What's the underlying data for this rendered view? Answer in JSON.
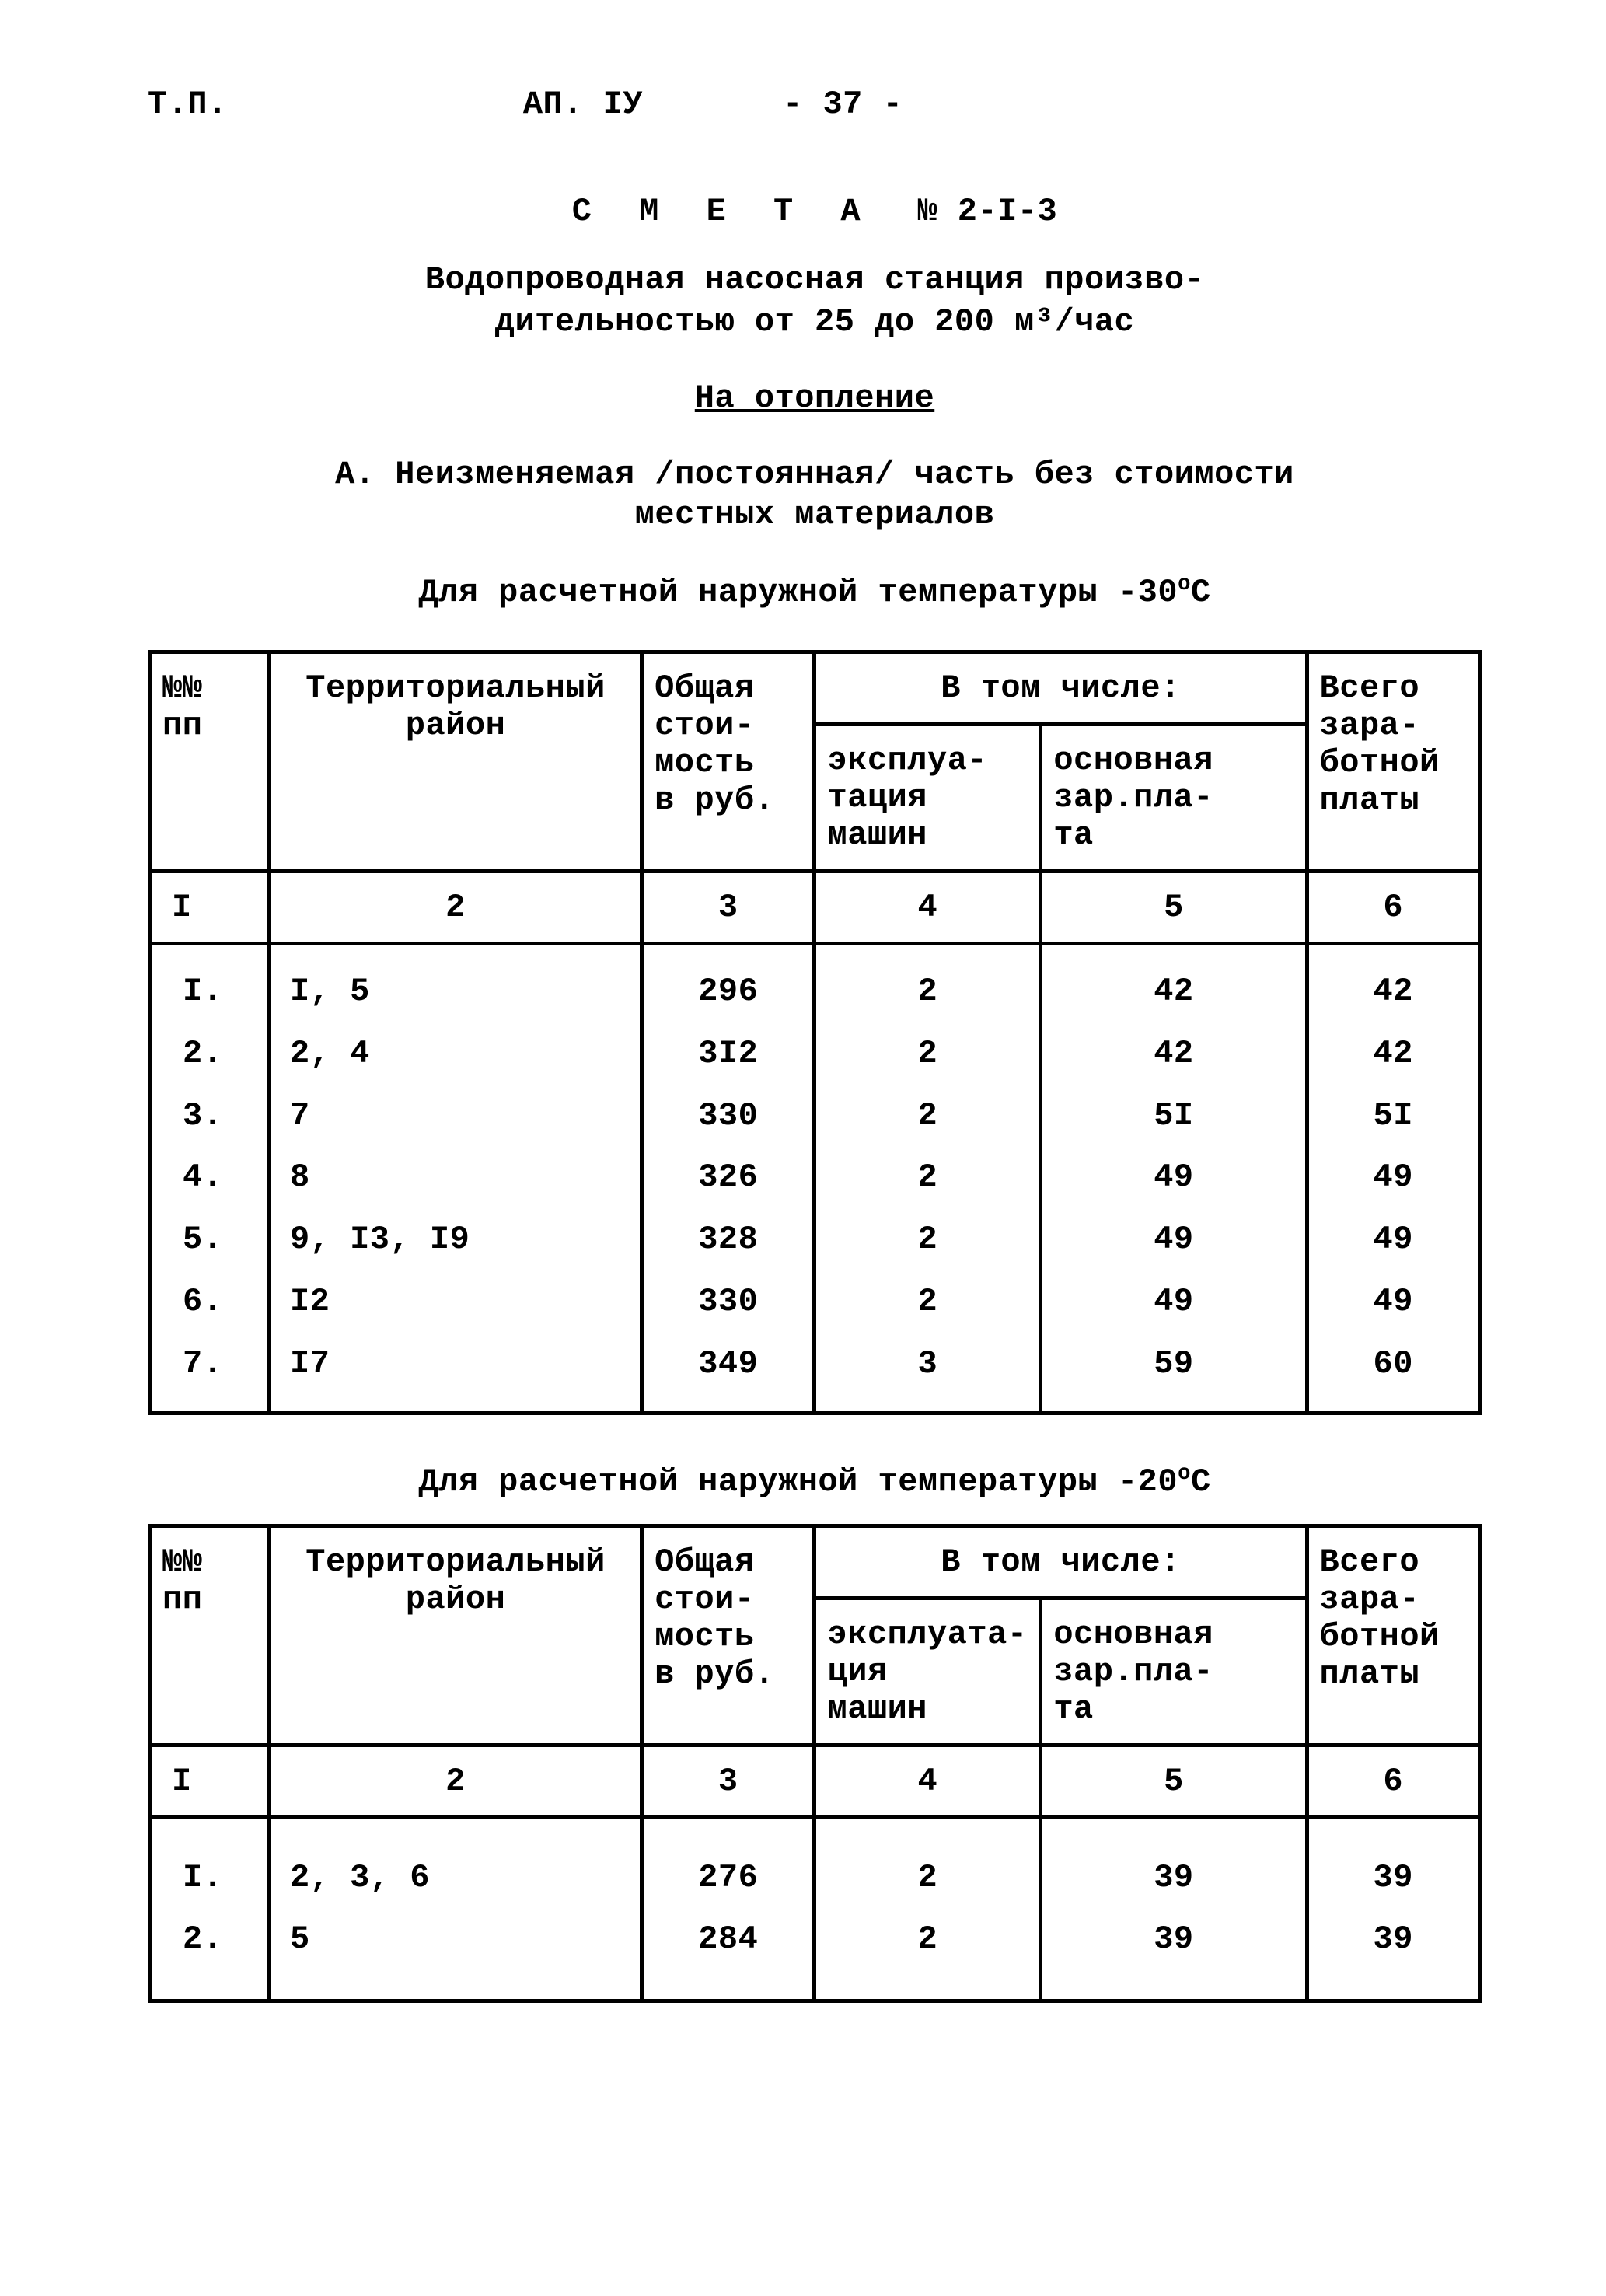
{
  "header": {
    "left": "Т.П.",
    "center1": "АП. ІУ",
    "center2": "- 37 -"
  },
  "title": {
    "main_letters": "С М Е Т А",
    "main_no": "№ 2-I-3",
    "subtitle1": "Водопроводная насосная станция произво-",
    "subtitle2": "дительностью от 25 до 200 м³/час",
    "section_underlined": "На отопление",
    "sectA_line1": "А. Неизменяемая /постоянная/ часть без стоимости",
    "sectA_line2": "местных материалов",
    "temp30_prefix": "Для расчетной наружной температуры -30",
    "temp30_sup": "о",
    "temp30_suffix": "С",
    "temp20_prefix": "Для расчетной наружной температуры -20",
    "temp20_sup": "о",
    "temp20_suffix": "С"
  },
  "table1": {
    "headers": {
      "c1a": "№№",
      "c1b": "пп",
      "c2a": "Территориальный",
      "c2b": "район",
      "c3a": "Общая",
      "c3b": "стои-",
      "c3c": "мость",
      "c3d": "в руб.",
      "c45": "В том числе:",
      "c4a": "эксплуа-",
      "c4b": "тация",
      "c4c": "машин",
      "c5a": "основная",
      "c5b": "зар.пла-",
      "c5c": "та",
      "c6a": "Всего",
      "c6b": "зара-",
      "c6c": "ботной",
      "c6d": "платы"
    },
    "numrow": {
      "c1": "I",
      "c2": "2",
      "c3": "3",
      "c4": "4",
      "c5": "5",
      "c6": "6"
    },
    "rows": [
      {
        "n": "I.",
        "region": "I, 5",
        "cost": "296",
        "expl": "2",
        "zar": "42",
        "total": "42"
      },
      {
        "n": "2.",
        "region": "2, 4",
        "cost": "3I2",
        "expl": "2",
        "zar": "42",
        "total": "42"
      },
      {
        "n": "3.",
        "region": "7",
        "cost": "330",
        "expl": "2",
        "zar": "5I",
        "total": "5I"
      },
      {
        "n": "4.",
        "region": "8",
        "cost": "326",
        "expl": "2",
        "zar": "49",
        "total": "49"
      },
      {
        "n": "5.",
        "region": "9, I3, I9",
        "cost": "328",
        "expl": "2",
        "zar": "49",
        "total": "49"
      },
      {
        "n": "6.",
        "region": "I2",
        "cost": "330",
        "expl": "2",
        "zar": "49",
        "total": "49"
      },
      {
        "n": "7.",
        "region": "I7",
        "cost": "349",
        "expl": "3",
        "zar": "59",
        "total": "60"
      }
    ]
  },
  "table2": {
    "headers": {
      "c1a": "№№",
      "c1b": "пп",
      "c2a": "Территориальный",
      "c2b": "район",
      "c3a": "Общая",
      "c3b": "стои-",
      "c3c": "мость",
      "c3d": "в руб.",
      "c45": "В том числе:",
      "c4a": "эксплуата-",
      "c4b": "ция",
      "c4c": "машин",
      "c5a": "основная",
      "c5b": "зар.пла-",
      "c5c": "та",
      "c6a": "Всего",
      "c6b": "зара-",
      "c6c": "ботной",
      "c6d": "платы"
    },
    "numrow": {
      "c1": "I",
      "c2": "2",
      "c3": "3",
      "c4": "4",
      "c5": "5",
      "c6": "6"
    },
    "rows": [
      {
        "n": "I.",
        "region": "2, 3, 6",
        "cost": "276",
        "expl": "2",
        "zar": "39",
        "total": "39"
      },
      {
        "n": "2.",
        "region": "5",
        "cost": "284",
        "expl": "2",
        "zar": "39",
        "total": "39"
      }
    ]
  }
}
